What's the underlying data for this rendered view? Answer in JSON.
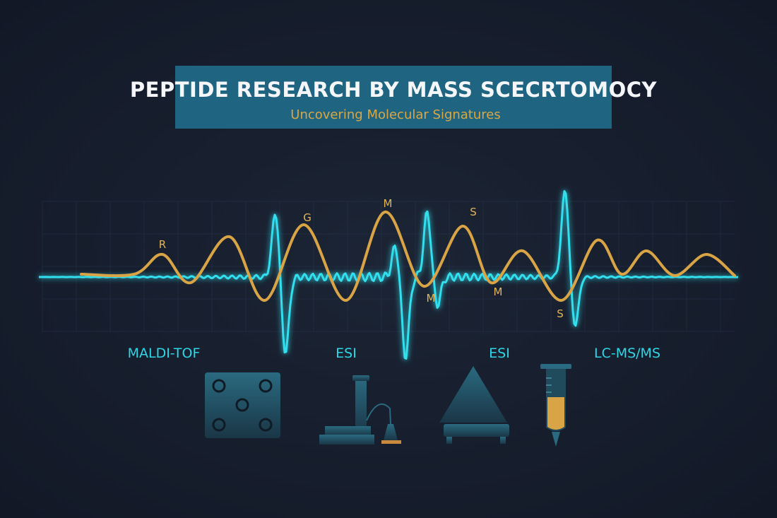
{
  "header": {
    "title": "PEPTIDE RESEARCH BY MASS SCECRTOMOCY",
    "subtitle": "Uncovering Molecular Signatures"
  },
  "peak_labels": [
    "R",
    "G",
    "M",
    "S",
    "M",
    "M",
    "S"
  ],
  "techniques": [
    "MALDI-TOF",
    "ESI",
    "ESI",
    "LC-MS/MS"
  ]
}
